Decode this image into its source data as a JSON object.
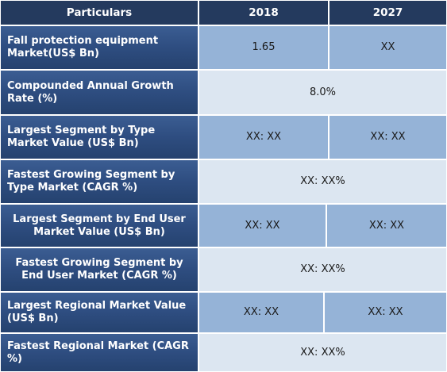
{
  "header": {
    "particulars": "Particulars",
    "year_2018": "2018",
    "year_2027": "2027"
  },
  "rows": [
    {
      "label": "Fall protection equipment Market(US$ Bn)",
      "v2018": "1.65",
      "v2027": "XX"
    },
    {
      "label": "Compounded Annual Growth Rate (%)",
      "value": "8.0%"
    },
    {
      "label": "Largest Segment by Type  Market Value (US$ Bn)",
      "v2018": "XX: XX",
      "v2027": "XX: XX"
    },
    {
      "label": "Fastest Growing Segment by Type Market (CAGR %)",
      "value": "XX: XX%"
    },
    {
      "label": "Largest Segment by End User Market Value (US$ Bn)",
      "v2018": "XX: XX",
      "v2027": "XX: XX"
    },
    {
      "label": "Fastest Growing Segment by End User Market (CAGR %)",
      "value": "XX: XX%"
    },
    {
      "label": "Largest Regional Market Value (US$ Bn)",
      "v2018": "XX: XX",
      "v2027": "XX: XX"
    },
    {
      "label": "Fastest Regional Market (CAGR %)",
      "value": "XX: XX%"
    }
  ],
  "colors": {
    "header_bg": "#243a5e",
    "label_bg": "#2e4d80",
    "value_blue": "#95b3d7",
    "value_light": "#dce6f1"
  }
}
